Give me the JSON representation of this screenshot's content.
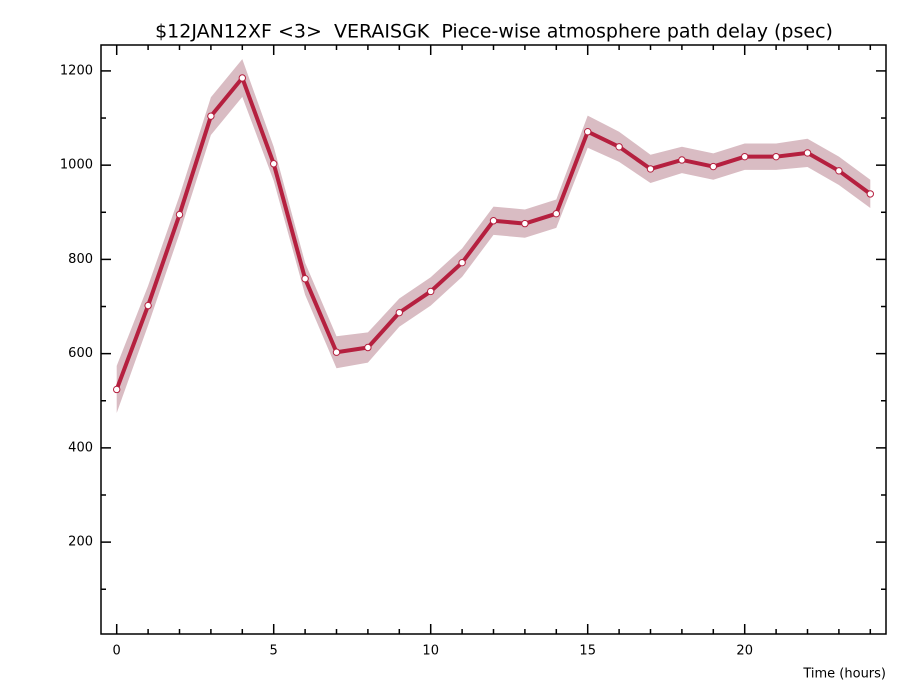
{
  "chart_data": {
    "type": "line",
    "title": "$12JAN12XF <3>  VERAISGK  Piece-wise atmosphere path delay (psec)",
    "x_label": "Time (hours)",
    "x": [
      0,
      1,
      2,
      3,
      4,
      5,
      6,
      7,
      8,
      9,
      10,
      11,
      12,
      13,
      14,
      15,
      16,
      17,
      18,
      19,
      20,
      21,
      22,
      23,
      24
    ],
    "series": [
      {
        "color": "#b5203f",
        "band_color": "#d9bcc3",
        "values": [
          524,
          702,
          895,
          1104,
          1185,
          1003,
          759,
          603,
          613,
          687,
          732,
          793,
          882,
          876,
          897,
          1071,
          1039,
          992,
          1011,
          997,
          1018,
          1018,
          1026,
          988,
          939
        ],
        "errors": [
          50,
          42,
          40,
          40,
          40,
          36,
          34,
          34,
          32,
          30,
          30,
          30,
          30,
          30,
          30,
          34,
          32,
          30,
          28,
          28,
          28,
          28,
          30,
          30,
          30
        ]
      }
    ],
    "xlim": [
      -0.5,
      24.5
    ],
    "xticks": [
      0,
      5,
      10,
      15,
      20
    ],
    "xminor_ticks": [
      1,
      2,
      3,
      4,
      6,
      7,
      8,
      9,
      11,
      12,
      13,
      14,
      16,
      17,
      18,
      19,
      21,
      22,
      23,
      24
    ],
    "ylim": [
      5,
      1255
    ],
    "yticks": [
      200,
      400,
      600,
      800,
      1000,
      1200
    ],
    "yminor_ticks": [
      100,
      300,
      500,
      700,
      900,
      1100
    ]
  }
}
